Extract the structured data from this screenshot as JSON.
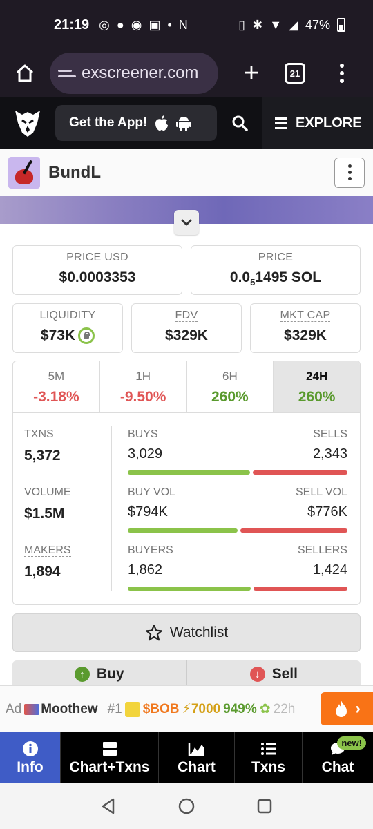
{
  "status": {
    "time": "21:19",
    "battery": "47%"
  },
  "browser": {
    "url": "exscreener.com",
    "tab_count": "21"
  },
  "header": {
    "get_app": "Get the App!",
    "explore": "EXPLORE"
  },
  "token": {
    "name": "BundL"
  },
  "stats": {
    "price_usd_label": "PRICE USD",
    "price_usd": "$0.0003353",
    "price_label": "PRICE",
    "price_main": "0.0",
    "price_sub": "5",
    "price_rest": "1495 SOL",
    "liquidity_label": "LIQUIDITY",
    "liquidity": "$73K",
    "fdv_label": "FDV",
    "fdv": "$329K",
    "mktcap_label": "MKT CAP",
    "mktcap": "$329K"
  },
  "timeframes": [
    {
      "label": "5M",
      "value": "-3.18%"
    },
    {
      "label": "1H",
      "value": "-9.50%"
    },
    {
      "label": "6H",
      "value": "260%"
    },
    {
      "label": "24H",
      "value": "260%"
    }
  ],
  "txns": {
    "txns_label": "TXNS",
    "txns": "5,372",
    "volume_label": "VOLUME",
    "volume": "$1.5M",
    "makers_label": "MAKERS",
    "makers": "1,894",
    "buys_label": "BUYS",
    "buys": "3,029",
    "sells_label": "SELLS",
    "sells": "2,343",
    "buys_fraction": 0.564,
    "buyvol_label": "BUY VOL",
    "buyvol": "$794K",
    "sellvol_label": "SELL VOL",
    "sellvol": "$776K",
    "buyvol_fraction": 0.506,
    "buyers_label": "BUYERS",
    "buyers": "1,862",
    "sellers_label": "SELLERS",
    "sellers": "1,424",
    "buyers_fraction": 0.567
  },
  "actions": {
    "watchlist": "Watchlist",
    "buy": "Buy",
    "sell": "Sell"
  },
  "ad": {
    "ad_label": "Ad",
    "name": "Moothew",
    "rank": "#1",
    "ticker": "$BOB",
    "boost": "7000",
    "change": "949%",
    "next": "22h"
  },
  "nav": {
    "info": "Info",
    "chart_txns": "Chart+Txns",
    "chart": "Chart",
    "txns": "Txns",
    "chat": "Chat",
    "new_badge": "new!"
  },
  "colors": {
    "positive": "#5a9a2e",
    "negative": "#e05555",
    "buy_bar": "#8bc34a",
    "sell_bar": "#e05555",
    "nav_active": "#3f5cc6",
    "ad_accent": "#f97316"
  }
}
